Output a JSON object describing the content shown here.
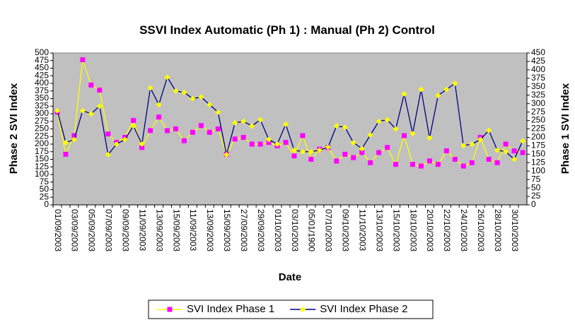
{
  "chart_data": {
    "type": "line",
    "title": "SSVI Index Automatic (Ph 1) : Manual (Ph 2) Control",
    "xlabel": "Date",
    "ylabel": "Phase 2 SVI Index",
    "y2label": "Phase 1 SVI Index",
    "categories": [
      "01/09/2003",
      null,
      "03/09/2003",
      null,
      "05/09/2003",
      null,
      "07/09/2003",
      null,
      "09/09/2003",
      null,
      "11/09/2003",
      null,
      "13/09/2003",
      null,
      "15/09/2003",
      null,
      "11/09/2003",
      null,
      "13/09/2003",
      null,
      "15/09/2003",
      null,
      "27/09/2003",
      null,
      "29/09/2003",
      null,
      "01/10/2003",
      null,
      "03/10/2003",
      null,
      "05/01/1900",
      null,
      "07/10/2003",
      null,
      "09/10/2003",
      null,
      "11/10/2003",
      null,
      "13/10/2003",
      null,
      "15/10/2003",
      null,
      "18/10/2003",
      null,
      "20/10/2003",
      null,
      "22/10/2003",
      null,
      "24/10/2003",
      null,
      "26/10/2003",
      null,
      "28/10/2003",
      null,
      "30/10/2003",
      null
    ],
    "series": [
      {
        "name": "SVI Index Phase 1",
        "color": "#ffff00",
        "marker_color": "#ff00ff",
        "marker": "square",
        "axis": "y2",
        "values": [
          275,
          150,
          205,
          430,
          355,
          340,
          210,
          185,
          200,
          250,
          170,
          220,
          260,
          220,
          225,
          190,
          215,
          235,
          215,
          225,
          150,
          195,
          200,
          180,
          180,
          185,
          175,
          185,
          145,
          205,
          135,
          165,
          170,
          130,
          150,
          140,
          155,
          125,
          155,
          170,
          120,
          205,
          120,
          115,
          130,
          120,
          160,
          135,
          115,
          125,
          200,
          135,
          125,
          180,
          160,
          155
        ]
      },
      {
        "name": "SVI Index Phase 2",
        "color": "#000080",
        "marker_color": "#ffff00",
        "marker": "diamond",
        "values": [
          310,
          205,
          215,
          310,
          300,
          325,
          165,
          200,
          215,
          260,
          200,
          385,
          330,
          420,
          375,
          370,
          350,
          355,
          330,
          305,
          165,
          270,
          275,
          260,
          280,
          215,
          200,
          265,
          180,
          175,
          175,
          180,
          190,
          260,
          255,
          205,
          185,
          230,
          275,
          280,
          250,
          365,
          235,
          380,
          220,
          360,
          380,
          400,
          195,
          200,
          215,
          245,
          180,
          175,
          150,
          210
        ]
      }
    ],
    "ylim": [
      0,
      500
    ],
    "yticks": [
      0,
      25,
      50,
      75,
      100,
      125,
      150,
      175,
      200,
      225,
      250,
      275,
      300,
      325,
      350,
      375,
      400,
      425,
      450,
      475,
      500
    ],
    "y2lim": [
      0,
      450
    ],
    "y2ticks": [
      0,
      25,
      50,
      75,
      100,
      125,
      150,
      175,
      200,
      225,
      250,
      275,
      300,
      325,
      350,
      375,
      400,
      425,
      450
    ],
    "plot_background": "#c0c0c0",
    "legend": "bottom"
  }
}
